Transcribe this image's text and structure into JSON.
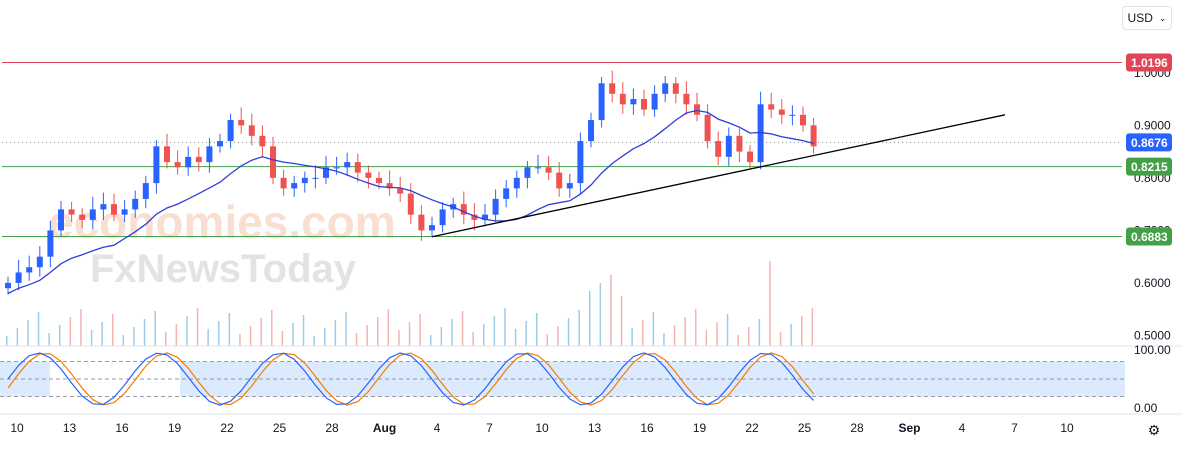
{
  "currency_selector": {
    "label": "USD"
  },
  "watermark": {
    "line1": "economies.com",
    "line2": "FxNewsToday"
  },
  "colors": {
    "up": "#2962ff",
    "down": "#ef5350",
    "ma": "#2f3fd6",
    "resistance": "#e0455a",
    "support": "#43a047",
    "trendline": "#000000",
    "stoch_k": "#2962ff",
    "stoch_d": "#f57c00",
    "stoch_band": "#dbeafc"
  },
  "chart_data": {
    "type": "candlestick",
    "price_axis": {
      "range": [
        0.48,
        1.07
      ],
      "ticks": [
        "0.5000",
        "0.6000",
        "0.7000",
        "0.8000",
        "0.9000",
        "1.0000"
      ]
    },
    "time_axis": {
      "labels": [
        "10",
        "13",
        "16",
        "19",
        "22",
        "25",
        "28",
        "Aug",
        "4",
        "7",
        "10",
        "13",
        "16",
        "19",
        "22",
        "25",
        "28",
        "Sep",
        "4",
        "7",
        "10"
      ]
    },
    "levels": [
      {
        "value": 1.0196,
        "label": "1.0196",
        "kind": "resistance"
      },
      {
        "value": 0.8676,
        "label": "0.8676",
        "kind": "current"
      },
      {
        "value": 0.8215,
        "label": "0.8215",
        "kind": "support"
      },
      {
        "value": 0.6883,
        "label": "0.6883",
        "kind": "support"
      }
    ],
    "trendline": {
      "from": {
        "day": 23,
        "price": 0.688
      },
      "to": {
        "day": 53,
        "price": 0.92
      }
    },
    "closes": [
      0.6,
      0.62,
      0.63,
      0.65,
      0.7,
      0.74,
      0.73,
      0.72,
      0.74,
      0.75,
      0.73,
      0.74,
      0.76,
      0.79,
      0.86,
      0.83,
      0.82,
      0.84,
      0.83,
      0.86,
      0.87,
      0.91,
      0.9,
      0.88,
      0.86,
      0.8,
      0.78,
      0.79,
      0.8,
      0.8,
      0.82,
      0.82,
      0.83,
      0.81,
      0.8,
      0.79,
      0.78,
      0.77,
      0.73,
      0.7,
      0.71,
      0.74,
      0.75,
      0.73,
      0.72,
      0.73,
      0.76,
      0.78,
      0.8,
      0.82,
      0.82,
      0.81,
      0.78,
      0.79,
      0.87,
      0.91,
      0.98,
      0.96,
      0.94,
      0.95,
      0.93,
      0.96,
      0.98,
      0.96,
      0.94,
      0.92,
      0.87,
      0.84,
      0.88,
      0.85,
      0.83,
      0.94,
      0.93,
      0.92,
      0.92,
      0.9,
      0.86
    ],
    "moving_average": {
      "range": [
        0.61,
        0.92
      ]
    },
    "volume": {
      "range": [
        0,
        1
      ]
    },
    "stochastic": {
      "range": [
        0,
        100
      ],
      "ticks": [
        "0.00",
        "100.00"
      ],
      "band": [
        20,
        80
      ]
    }
  }
}
